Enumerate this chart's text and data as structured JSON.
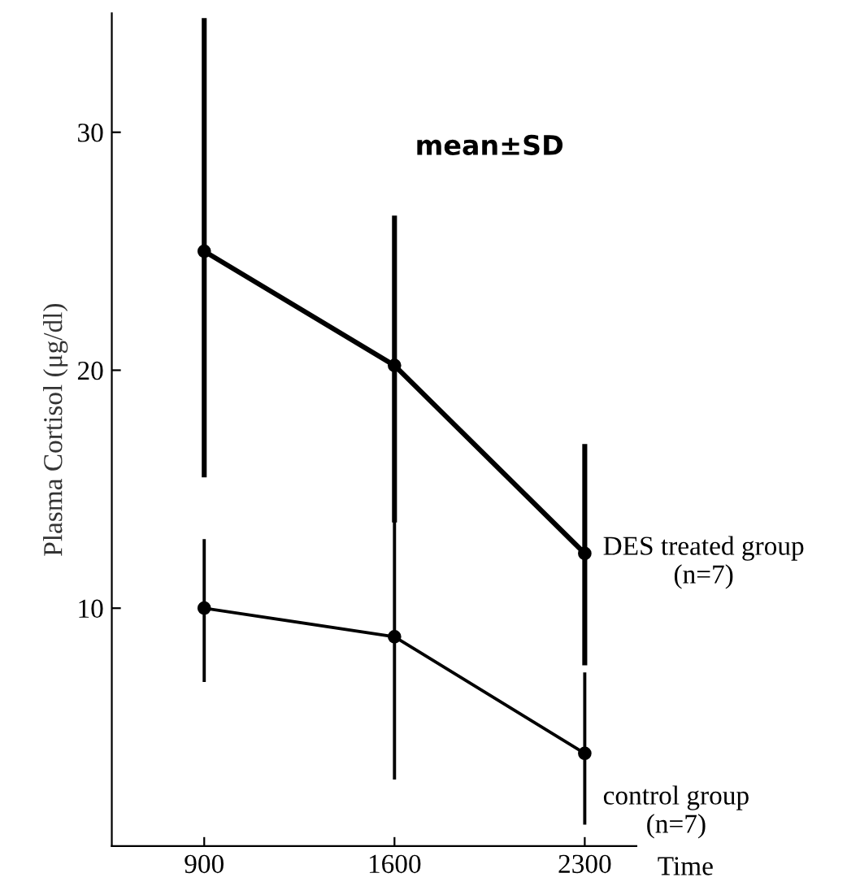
{
  "chart_data": {
    "type": "line",
    "xlabel": "Time",
    "ylabel": "Plasma Cortisol (μg/dl)",
    "x": [
      900,
      1600,
      2300
    ],
    "xlim": [
      560,
      2490
    ],
    "xticks": [
      900,
      1600,
      2300
    ],
    "ylim": [
      0,
      35
    ],
    "yticks": [
      10,
      20,
      30
    ],
    "marker": "circle",
    "grid": false,
    "legend": false,
    "annotations": [
      "mean±SD"
    ],
    "series": [
      {
        "name": "DES treated group\n(n=7)",
        "color": "#000000",
        "values": [
          25.0,
          20.2,
          12.3
        ],
        "errors": [
          [
            15.5,
            34.8
          ],
          [
            13.6,
            26.5
          ],
          [
            7.6,
            16.9
          ]
        ]
      },
      {
        "name": "control group\n(n=7)",
        "color": "#000000",
        "values": [
          10.0,
          8.8,
          3.9
        ],
        "errors": [
          [
            6.9,
            12.9
          ],
          [
            2.8,
            14.7
          ],
          [
            0.9,
            7.3
          ]
        ]
      }
    ]
  }
}
